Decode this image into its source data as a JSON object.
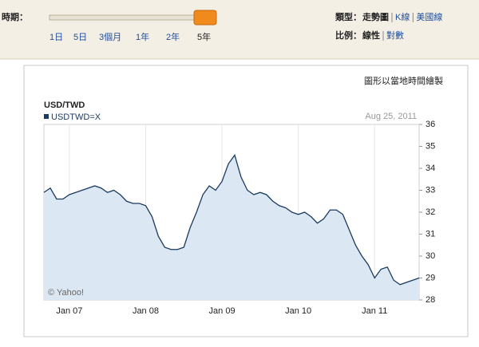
{
  "controls": {
    "period_label": "時期：",
    "ranges": [
      "1日",
      "5日",
      "3個月",
      "1年",
      "2年",
      "5年"
    ],
    "type_label": "類型：",
    "types": [
      "走勢圖",
      "K線",
      "美國線"
    ],
    "scale_label": "比例：",
    "scales": [
      "線性",
      "對數"
    ]
  },
  "note": "圖形以當地時間繪製",
  "chart_data": {
    "type": "area",
    "title": "USD/TWD",
    "date": "Aug 25, 2011",
    "credit": "© Yahoo!",
    "categories": [
      null,
      null,
      null,
      null,
      "Jan 07",
      null,
      null,
      null,
      null,
      null,
      null,
      null,
      null,
      null,
      null,
      null,
      "Jan 08",
      null,
      null,
      null,
      null,
      null,
      null,
      null,
      null,
      null,
      null,
      null,
      "Jan 09",
      null,
      null,
      null,
      null,
      null,
      null,
      null,
      null,
      null,
      null,
      null,
      "Jan 10",
      null,
      null,
      null,
      null,
      null,
      null,
      null,
      null,
      null,
      null,
      null,
      "Jan 11",
      null,
      null,
      null,
      null,
      null,
      null,
      null
    ],
    "series": [
      {
        "name": "USDTWD=X",
        "color": "#1a3a5e",
        "values": [
          32.9,
          33.1,
          32.6,
          32.6,
          32.8,
          32.9,
          33.0,
          33.1,
          33.2,
          33.1,
          32.9,
          33.0,
          32.8,
          32.5,
          32.4,
          32.4,
          32.3,
          31.8,
          30.9,
          30.4,
          30.3,
          30.3,
          30.4,
          31.3,
          32.0,
          32.8,
          33.2,
          33.0,
          33.4,
          34.2,
          34.6,
          33.6,
          33.0,
          32.8,
          32.9,
          32.8,
          32.5,
          32.3,
          32.2,
          32.0,
          31.9,
          32.0,
          31.8,
          31.5,
          31.7,
          32.1,
          32.1,
          31.9,
          31.2,
          30.5,
          30.0,
          29.6,
          29.0,
          29.4,
          29.5,
          28.9,
          28.7,
          28.8,
          28.9,
          29.0
        ]
      }
    ],
    "fill": "#dbe8f3",
    "ylim": [
      28,
      36
    ],
    "yticks": [
      28,
      29,
      30,
      31,
      32,
      33,
      34,
      35,
      36
    ],
    "grid": true
  }
}
